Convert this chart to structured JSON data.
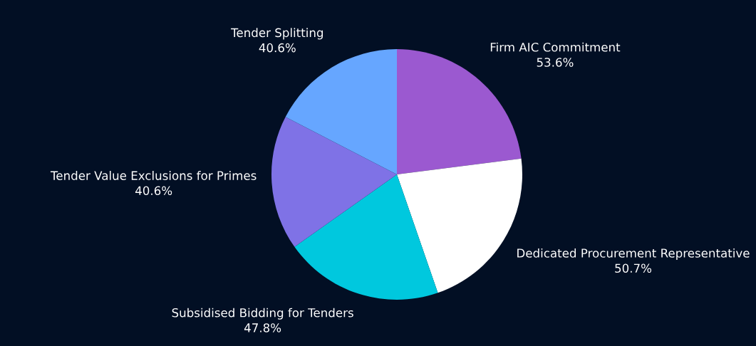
{
  "chart_data": {
    "type": "pie",
    "categories": [
      "Firm AIC Commitment",
      "Dedicated Procurement Representative",
      "Subsidised Bidding for Tenders",
      "Tender Value Exclusions for Primes",
      "Tender Splitting"
    ],
    "values": [
      53.6,
      50.7,
      47.8,
      40.6,
      40.6
    ],
    "value_labels": [
      "53.6%",
      "50.7%",
      "47.8%",
      "40.6%",
      "40.6%"
    ],
    "colors": [
      "#9b59d0",
      "#ffffff",
      "#00c8de",
      "#7f72e6",
      "#66a6ff"
    ],
    "legend": false
  }
}
